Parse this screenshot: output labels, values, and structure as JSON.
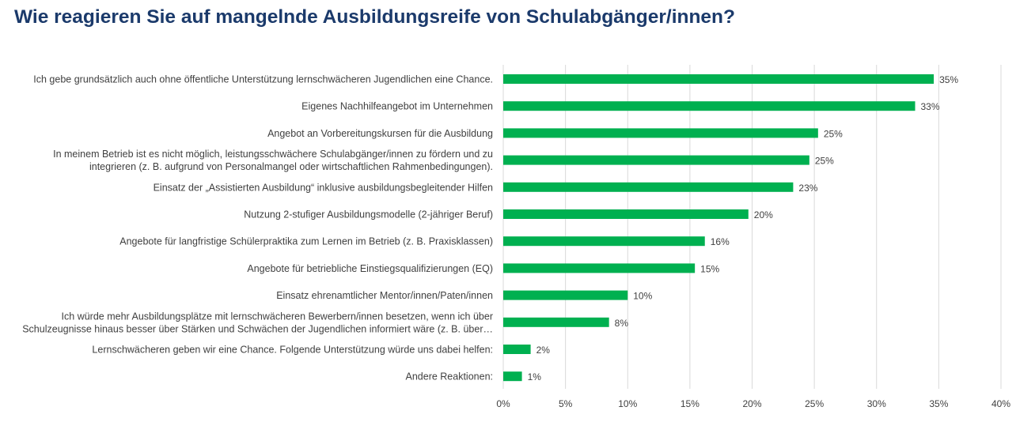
{
  "colors": {
    "title": "#1b3a6b",
    "bar": "#00b050",
    "grid": "#d9d9d9",
    "text": "#404040"
  },
  "chart_data": {
    "type": "bar",
    "orientation": "horizontal",
    "title": "Wie reagieren Sie auf mangelnde Ausbildungsreife von Schulabgänger/innen?",
    "categories": [
      [
        "Ich gebe grundsätzlich auch ohne öffentliche Unterstützung lernschwächeren Jugendlichen eine Chance."
      ],
      [
        "Eigenes Nachhilfeangebot im Unternehmen"
      ],
      [
        "Angebot an Vorbereitungskursen für die Ausbildung"
      ],
      [
        "In meinem Betrieb ist es nicht möglich, leistungsschwächere Schulabgänger/innen zu fördern und zu",
        "integrieren (z. B. aufgrund von Personalmangel oder wirtschaftlichen Rahmenbedingungen)."
      ],
      [
        "Einsatz der „Assistierten Ausbildung“ inklusive ausbildungsbegleitender Hilfen"
      ],
      [
        "Nutzung 2-stufiger Ausbildungsmodelle (2-jähriger Beruf)"
      ],
      [
        "Angebote für langfristige Schülerpraktika zum Lernen im Betrieb (z. B. Praxisklassen)"
      ],
      [
        "Angebote für betriebliche Einstiegsqualifizierungen (EQ)"
      ],
      [
        "Einsatz ehrenamtlicher Mentor/innen/Paten/innen"
      ],
      [
        "Ich würde mehr Ausbildungsplätze mit lernschwächeren Bewerbern/innen besetzen, wenn ich über",
        "Schulzeugnisse hinaus besser über Stärken und Schwächen der Jugendlichen informiert wäre (z. B. über…"
      ],
      [
        "Lernschwächeren geben wir eine Chance. Folgende Unterstützung würde uns dabei helfen:"
      ],
      [
        "Andere Reaktionen:"
      ]
    ],
    "values": [
      34.6,
      33.1,
      25.3,
      24.6,
      23.3,
      19.7,
      16.2,
      15.4,
      10.0,
      8.5,
      2.2,
      1.5
    ],
    "value_labels": [
      "35%",
      "33%",
      "25%",
      "25%",
      "23%",
      "20%",
      "16%",
      "15%",
      "10%",
      "8%",
      "2%",
      "1%"
    ],
    "xlim": [
      0,
      40
    ],
    "xticks": [
      0,
      5,
      10,
      15,
      20,
      25,
      30,
      35,
      40
    ],
    "xtick_labels": [
      "0%",
      "5%",
      "10%",
      "15%",
      "20%",
      "25%",
      "30%",
      "35%",
      "40%"
    ],
    "grid": true,
    "legend": "none"
  }
}
